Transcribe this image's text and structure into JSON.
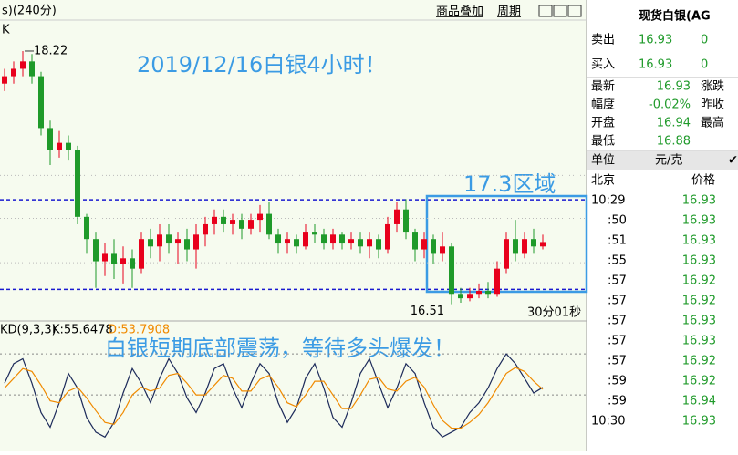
{
  "toolbar": {
    "period": "s)(240分)",
    "overlay": "商品叠加",
    "cycle": "周期"
  },
  "chart_data": [
    {
      "type": "candlestick",
      "label": "K",
      "ylim": [
        16.44,
        18.38
      ],
      "grid_values": [
        17.38,
        17.09,
        16.79
      ],
      "hlines": [
        17.215,
        16.61
      ],
      "hline_color": "#1a1ad0",
      "up_color": "#e8001c",
      "down_color": "#1f9a2a",
      "title": "2019/12/16白银4小时！",
      "box_label": "17.3区域",
      "timer": "30分01秒",
      "open": [
        18.0,
        18.05,
        18.1,
        18.15,
        18.05,
        17.7,
        17.55,
        17.6,
        17.55,
        17.1,
        16.95,
        16.8,
        16.85,
        16.78,
        16.82,
        16.75,
        16.95,
        16.9,
        16.98,
        16.92,
        16.95,
        16.88,
        16.98,
        17.05,
        17.1,
        17.05,
        17.08,
        17.02,
        17.08,
        17.12,
        16.98,
        16.92,
        16.95,
        16.9,
        17.0,
        16.98,
        16.92,
        16.98,
        16.92,
        16.95,
        16.9,
        16.95,
        16.88,
        17.05,
        17.15,
        17.0,
        16.88,
        16.95,
        16.85,
        16.9,
        16.58,
        16.55,
        16.58,
        16.6,
        16.58,
        16.75,
        16.95,
        16.85,
        16.95,
        16.9
      ],
      "high": [
        18.1,
        18.15,
        18.22,
        18.2,
        18.08,
        17.75,
        17.68,
        17.65,
        17.58,
        17.12,
        17.0,
        16.92,
        16.95,
        16.9,
        16.88,
        17.0,
        17.02,
        17.05,
        17.05,
        17.0,
        17.02,
        17.05,
        17.1,
        17.15,
        17.15,
        17.12,
        17.12,
        17.12,
        17.18,
        17.2,
        17.02,
        17.0,
        16.98,
        17.05,
        17.05,
        17.02,
        17.02,
        17.0,
        17.0,
        17.0,
        17.0,
        16.98,
        17.1,
        17.2,
        17.22,
        17.02,
        17.0,
        16.98,
        17.0,
        16.92,
        16.62,
        16.62,
        16.65,
        16.66,
        16.8,
        17.0,
        17.08,
        17.0,
        17.02,
        16.98
      ],
      "low": [
        17.95,
        18.0,
        18.05,
        18.0,
        17.65,
        17.45,
        17.5,
        17.48,
        17.05,
        16.85,
        16.62,
        16.7,
        16.68,
        16.65,
        16.62,
        16.72,
        16.82,
        16.8,
        16.85,
        16.78,
        16.8,
        16.75,
        16.9,
        16.98,
        17.0,
        16.98,
        16.95,
        16.98,
        17.0,
        16.95,
        16.85,
        16.85,
        16.85,
        16.88,
        16.92,
        16.88,
        16.88,
        16.88,
        16.88,
        16.85,
        16.82,
        16.82,
        16.85,
        17.0,
        16.95,
        16.8,
        16.82,
        16.78,
        16.8,
        16.51,
        16.52,
        16.53,
        16.55,
        16.55,
        16.56,
        16.72,
        16.8,
        16.82,
        16.85,
        16.88
      ],
      "close": [
        18.05,
        18.1,
        18.15,
        18.05,
        17.7,
        17.55,
        17.6,
        17.55,
        17.1,
        16.95,
        16.8,
        16.85,
        16.78,
        16.82,
        16.75,
        16.95,
        16.9,
        16.98,
        16.92,
        16.95,
        16.88,
        16.98,
        17.05,
        17.1,
        17.05,
        17.08,
        17.02,
        17.08,
        17.12,
        16.98,
        16.92,
        16.95,
        16.9,
        17.0,
        16.98,
        16.92,
        16.98,
        16.92,
        16.95,
        16.9,
        16.95,
        16.88,
        17.05,
        17.15,
        17.0,
        16.88,
        16.95,
        16.85,
        16.9,
        16.58,
        16.55,
        16.58,
        16.6,
        16.58,
        16.75,
        16.95,
        16.85,
        16.95,
        16.9,
        16.93
      ]
    },
    {
      "type": "line",
      "label": "KD(9,3,3)",
      "ylim": [
        -5,
        105
      ],
      "hlines": [
        90,
        48
      ],
      "hline_color": "#888888",
      "note": "白银短期底部震荡，等待多头爆发！",
      "series": [
        {
          "name": "K",
          "legend": "K:55.6478",
          "color": "#1c2a5a",
          "values": [
            60,
            80,
            85,
            60,
            30,
            15,
            40,
            70,
            55,
            25,
            10,
            5,
            20,
            50,
            75,
            60,
            40,
            65,
            85,
            70,
            45,
            30,
            50,
            75,
            80,
            55,
            35,
            60,
            80,
            70,
            40,
            20,
            35,
            65,
            80,
            55,
            25,
            15,
            40,
            70,
            85,
            60,
            35,
            55,
            80,
            70,
            40,
            15,
            5,
            10,
            15,
            30,
            40,
            55,
            75,
            90,
            80,
            65,
            50,
            55.6478
          ]
        },
        {
          "name": "D",
          "legend": "D:53.7908",
          "color": "#f08a00",
          "values": [
            55,
            65,
            75,
            72,
            58,
            42,
            40,
            52,
            56,
            45,
            32,
            20,
            18,
            30,
            48,
            56,
            52,
            55,
            68,
            70,
            60,
            48,
            48,
            58,
            68,
            65,
            52,
            52,
            64,
            68,
            56,
            40,
            36,
            48,
            62,
            62,
            48,
            34,
            34,
            48,
            64,
            66,
            54,
            52,
            62,
            66,
            56,
            38,
            22,
            14,
            14,
            20,
            28,
            40,
            55,
            70,
            76,
            72,
            62,
            53.7908
          ]
        }
      ]
    }
  ],
  "quote_panel": {
    "title": "现货白银(AG",
    "orders": [
      {
        "label": "卖出",
        "price": "16.93",
        "volume": "0"
      },
      {
        "label": "买入",
        "price": "16.93",
        "volume": "0"
      }
    ],
    "stats": [
      {
        "label": "最新",
        "value": "16.93",
        "right": "涨跌"
      },
      {
        "label": "幅度",
        "value": "-0.02%",
        "right": "昨收"
      },
      {
        "label": "开盘",
        "value": "16.94",
        "right": "最高"
      },
      {
        "label": "最低",
        "value": "16.88"
      }
    ],
    "unit_label": "单位",
    "unit": "元/克",
    "check": "✔",
    "ticks_header": [
      "北京",
      "价格"
    ],
    "first_time": "10:29",
    "first_price": "16.93",
    "ticks": [
      [
        ":50",
        "16.93"
      ],
      [
        ":51",
        "16.93"
      ],
      [
        ":55",
        "16.93"
      ],
      [
        ":57",
        "16.92"
      ],
      [
        ":57",
        "16.92"
      ],
      [
        ":57",
        "16.93"
      ],
      [
        ":57",
        "16.93"
      ],
      [
        ":57",
        "16.92"
      ],
      [
        ":59",
        "16.92"
      ],
      [
        ":59",
        "16.94"
      ]
    ],
    "last_time": "10:30",
    "last_price": "16.93"
  }
}
